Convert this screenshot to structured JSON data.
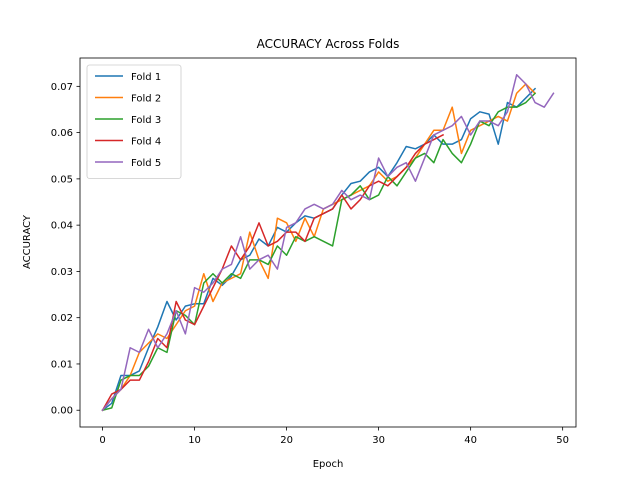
{
  "chart_data": {
    "type": "line",
    "title": "ACCURACY Across Folds",
    "xlabel": "Epoch",
    "ylabel": "ACCURACY",
    "xlim": [
      -2.45,
      51.45
    ],
    "ylim": [
      -0.003625,
      0.076125
    ],
    "xticks": [
      0,
      10,
      20,
      30,
      40,
      50
    ],
    "yticks": [
      0.0,
      0.01,
      0.02,
      0.03,
      0.04,
      0.05,
      0.06,
      0.07
    ],
    "ytick_labels": [
      "0.00",
      "0.01",
      "0.02",
      "0.03",
      "0.04",
      "0.05",
      "0.06",
      "0.07"
    ],
    "grid": false,
    "legend_position": "upper-left",
    "series": [
      {
        "name": "Fold 1",
        "color": "#1f77b4",
        "x": [
          0,
          1,
          2,
          3,
          4,
          5,
          6,
          7,
          8,
          9,
          10,
          11,
          12,
          13,
          14,
          15,
          16,
          17,
          18,
          19,
          20,
          21,
          22,
          23,
          24,
          25,
          26,
          27,
          28,
          29,
          30,
          31,
          32,
          33,
          34,
          35,
          36,
          37,
          38,
          39,
          40,
          41,
          42,
          43,
          44,
          45,
          46,
          47
        ],
        "y": [
          0.0,
          0.0015,
          0.0075,
          0.0075,
          0.0085,
          0.0135,
          0.018,
          0.0235,
          0.0195,
          0.0225,
          0.023,
          0.023,
          0.0285,
          0.027,
          0.029,
          0.0325,
          0.0335,
          0.037,
          0.0355,
          0.0395,
          0.0385,
          0.0405,
          0.042,
          0.0415,
          0.0425,
          0.0435,
          0.0465,
          0.049,
          0.0495,
          0.0515,
          0.0525,
          0.0505,
          0.0535,
          0.057,
          0.0565,
          0.0575,
          0.0595,
          0.0575,
          0.0575,
          0.0585,
          0.063,
          0.0645,
          0.064,
          0.0575,
          0.0665,
          0.0655,
          0.0675,
          0.0695
        ]
      },
      {
        "name": "Fold 2",
        "color": "#ff7f0e",
        "x": [
          0,
          1,
          2,
          3,
          4,
          5,
          6,
          7,
          8,
          9,
          10,
          11,
          12,
          13,
          14,
          15,
          16,
          17,
          18,
          19,
          20,
          21,
          22,
          23,
          24,
          25,
          26,
          27,
          28,
          29,
          30,
          31,
          32,
          33,
          34,
          35,
          36,
          37,
          38,
          39,
          40,
          41,
          42,
          43,
          44,
          45,
          46,
          47
        ],
        "y": [
          0.0,
          0.0025,
          0.0045,
          0.0075,
          0.0125,
          0.0145,
          0.0165,
          0.0155,
          0.0185,
          0.0215,
          0.0225,
          0.0295,
          0.0235,
          0.0275,
          0.0285,
          0.0295,
          0.0385,
          0.0325,
          0.0285,
          0.0415,
          0.0405,
          0.0365,
          0.0415,
          0.0375,
          0.0435,
          0.0445,
          0.0455,
          0.0465,
          0.0475,
          0.0485,
          0.0515,
          0.0495,
          0.0505,
          0.0525,
          0.0545,
          0.0575,
          0.0605,
          0.0605,
          0.0655,
          0.0555,
          0.0605,
          0.0615,
          0.0625,
          0.0635,
          0.0625,
          0.0685,
          0.0705,
          0.0685
        ]
      },
      {
        "name": "Fold 3",
        "color": "#2ca02c",
        "x": [
          0,
          1,
          2,
          3,
          4,
          5,
          6,
          7,
          8,
          9,
          10,
          11,
          12,
          13,
          14,
          15,
          16,
          17,
          18,
          19,
          20,
          21,
          22,
          23,
          24,
          25,
          26,
          27,
          28,
          29,
          30,
          31,
          32,
          33,
          34,
          35,
          36,
          37,
          38,
          39,
          40,
          41,
          42,
          43,
          44,
          45,
          46,
          47
        ],
        "y": [
          0.0,
          0.0005,
          0.0065,
          0.0075,
          0.0075,
          0.0095,
          0.0135,
          0.0125,
          0.0215,
          0.0205,
          0.0185,
          0.0275,
          0.0295,
          0.0275,
          0.0295,
          0.0285,
          0.0325,
          0.0325,
          0.0315,
          0.0355,
          0.0335,
          0.0375,
          0.0365,
          0.0375,
          0.0365,
          0.0355,
          0.0455,
          0.0465,
          0.0485,
          0.0455,
          0.0465,
          0.0505,
          0.0485,
          0.0515,
          0.0545,
          0.0555,
          0.0535,
          0.0585,
          0.0555,
          0.0535,
          0.0575,
          0.0625,
          0.0615,
          0.0645,
          0.0655,
          0.0655,
          0.0665,
          0.0685
        ]
      },
      {
        "name": "Fold 4",
        "color": "#d62728",
        "x": [
          0,
          1,
          2,
          3,
          4,
          5,
          6,
          7,
          8,
          9,
          10,
          11,
          12,
          13,
          14,
          15,
          16,
          17,
          18,
          19,
          20,
          21,
          22,
          23,
          24,
          25,
          26,
          27,
          28,
          29,
          30,
          31,
          32,
          33,
          34,
          35,
          36,
          37
        ],
        "y": [
          0.0,
          0.0035,
          0.0045,
          0.0065,
          0.0065,
          0.0105,
          0.0155,
          0.0135,
          0.0235,
          0.0195,
          0.0185,
          0.0225,
          0.0265,
          0.0305,
          0.0355,
          0.0325,
          0.0355,
          0.0405,
          0.0355,
          0.0365,
          0.0385,
          0.0385,
          0.0365,
          0.0415,
          0.0425,
          0.0435,
          0.0465,
          0.0435,
          0.0455,
          0.0485,
          0.0495,
          0.0485,
          0.0505,
          0.0525,
          0.0555,
          0.0575,
          0.0585,
          0.0595
        ]
      },
      {
        "name": "Fold 5",
        "color": "#9467bd",
        "x": [
          0,
          1,
          2,
          3,
          4,
          5,
          6,
          7,
          8,
          9,
          10,
          11,
          12,
          13,
          14,
          15,
          16,
          17,
          18,
          19,
          20,
          21,
          22,
          23,
          24,
          25,
          26,
          27,
          28,
          29,
          30,
          31,
          32,
          33,
          34,
          35,
          36,
          37,
          38,
          39,
          40,
          41,
          42,
          43,
          44,
          45,
          46,
          47,
          48,
          49
        ],
        "y": [
          0.0,
          0.0025,
          0.0045,
          0.0135,
          0.0125,
          0.0175,
          0.0135,
          0.0165,
          0.0215,
          0.0165,
          0.0265,
          0.0255,
          0.0275,
          0.0305,
          0.0315,
          0.0375,
          0.0305,
          0.0325,
          0.0335,
          0.0305,
          0.0395,
          0.0405,
          0.0435,
          0.0445,
          0.0435,
          0.0445,
          0.0475,
          0.0455,
          0.0465,
          0.0455,
          0.0545,
          0.0505,
          0.0525,
          0.0535,
          0.0495,
          0.0545,
          0.0595,
          0.0605,
          0.0615,
          0.0635,
          0.0595,
          0.0625,
          0.0625,
          0.0615,
          0.0645,
          0.0725,
          0.0705,
          0.0665,
          0.0655,
          0.0685
        ]
      }
    ]
  }
}
